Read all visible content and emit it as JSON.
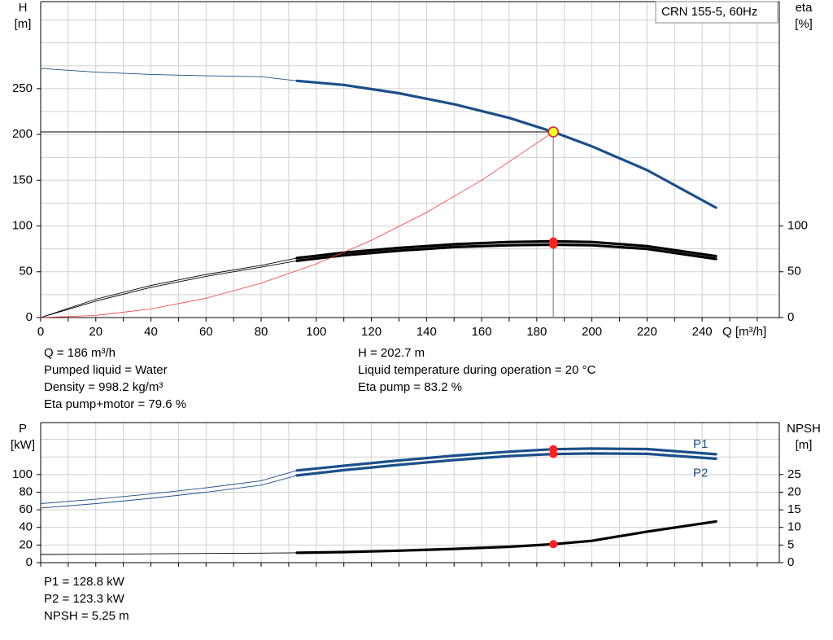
{
  "chart_data": [
    {
      "type": "line",
      "title": "CRN 155-5, 60Hz",
      "xlabel": "Q [m³/h]",
      "ylabel": "H",
      "yunit": "[m]",
      "y2label": "eta",
      "y2unit": "[%]",
      "xlim": [
        0,
        268
      ],
      "xticks": [
        0,
        20,
        40,
        60,
        80,
        100,
        120,
        140,
        160,
        180,
        200,
        220,
        240
      ],
      "xgrid": [
        0,
        10,
        20,
        30,
        40,
        50,
        60,
        70,
        80,
        90,
        100,
        110,
        120,
        130,
        140,
        150,
        160,
        170,
        180,
        190,
        200,
        210,
        220,
        230,
        240,
        250,
        260
      ],
      "ylim": [
        0,
        345
      ],
      "yticks": [
        0,
        50,
        100,
        150,
        200,
        250
      ],
      "ygrid": [
        0,
        25,
        50,
        75,
        100,
        125,
        150,
        175,
        200,
        225,
        250,
        275,
        300,
        325
      ],
      "y2lim": [
        0,
        345
      ],
      "y2ticks": [
        0,
        50,
        100
      ],
      "operating_range": [
        93,
        245
      ],
      "duty_point": {
        "x": 186,
        "y": 202.7
      },
      "series": [
        {
          "color": "#1b4f8a",
          "x": [
            0,
            20,
            40,
            60,
            80,
            93,
            110,
            130,
            150,
            170,
            186,
            200,
            220,
            245
          ],
          "values": [
            272,
            268,
            265.5,
            264,
            263,
            258.5,
            254,
            245,
            233,
            218,
            202.7,
            187,
            161,
            120
          ]
        },
        {
          "color": "#000000",
          "axis": "y2",
          "marker": true,
          "x": [
            0,
            20,
            40,
            60,
            80,
            93,
            110,
            130,
            150,
            170,
            186,
            200,
            220,
            245
          ],
          "values": [
            0,
            20,
            35,
            47,
            57,
            65,
            71,
            76,
            80,
            82.5,
            83.2,
            82.5,
            78,
            67
          ]
        },
        {
          "color": "#000000",
          "axis": "y2",
          "marker": true,
          "x": [
            0,
            20,
            40,
            60,
            80,
            93,
            110,
            130,
            150,
            170,
            186,
            200,
            220,
            245
          ],
          "values": [
            0,
            18,
            33,
            45,
            55,
            62,
            68,
            73,
            77,
            79,
            79.6,
            79,
            75,
            64
          ]
        },
        {
          "color": "#ff3b3b",
          "thin": true,
          "x": [
            0,
            20,
            40,
            60,
            80,
            100,
            120,
            140,
            160,
            186
          ],
          "values": [
            0,
            2.3,
            9.4,
            21.1,
            37.5,
            58.6,
            84.4,
            114.8,
            150,
            202.7
          ]
        }
      ]
    },
    {
      "type": "line",
      "ylabel": "P",
      "yunit": "[kW]",
      "y2label": "NPSH",
      "y2unit": "[m]",
      "xlim": [
        0,
        268
      ],
      "xgrid": [
        0,
        10,
        20,
        30,
        40,
        50,
        60,
        70,
        80,
        90,
        100,
        110,
        120,
        130,
        140,
        150,
        160,
        170,
        180,
        190,
        200,
        210,
        220,
        230,
        240,
        250,
        260
      ],
      "ylim": [
        0,
        159
      ],
      "yticks": [
        0,
        20,
        40,
        60,
        80,
        100
      ],
      "ygrid": [
        0,
        20,
        40,
        60,
        80,
        100,
        120,
        140
      ],
      "y2lim": [
        0,
        39.75
      ],
      "y2ticks": [
        0,
        5,
        10,
        15,
        20,
        25
      ],
      "operating_range": [
        93,
        245
      ],
      "duty_x": 186,
      "series": [
        {
          "name": "P1",
          "color": "#1b4f8a",
          "marker": true,
          "x": [
            0,
            20,
            40,
            60,
            80,
            93,
            110,
            130,
            150,
            170,
            186,
            200,
            220,
            245
          ],
          "values": [
            67,
            72,
            78,
            85,
            93,
            104.6,
            110,
            116,
            121.5,
            126,
            128.8,
            129.5,
            129,
            123
          ]
        },
        {
          "name": "P2",
          "color": "#1b4f8a",
          "marker": true,
          "x": [
            0,
            20,
            40,
            60,
            80,
            93,
            110,
            130,
            150,
            170,
            186,
            200,
            220,
            245
          ],
          "values": [
            62,
            67,
            73,
            80,
            88,
            99,
            105,
            111,
            116.5,
            121,
            123.3,
            124,
            123.5,
            118
          ]
        },
        {
          "color": "#000000",
          "axis": "y2",
          "marker": true,
          "x": [
            0,
            20,
            40,
            60,
            80,
            93,
            110,
            130,
            150,
            170,
            186,
            200,
            220,
            245
          ],
          "values": [
            2.3,
            2.4,
            2.5,
            2.6,
            2.7,
            2.8,
            3.0,
            3.4,
            3.9,
            4.5,
            5.25,
            6.2,
            8.8,
            11.7
          ]
        }
      ]
    }
  ],
  "operating_info": {
    "left": [
      "Q = 186 m³/h",
      "Pumped liquid = Water",
      "Density = 998.2 kg/m³",
      "Eta pump+motor = 79.6 %"
    ],
    "right": [
      "H = 202.7 m",
      "Liquid temperature during operation = 20 °C",
      "Eta pump = 83.2 %"
    ],
    "power": [
      "P1 = 128.8 kW",
      "P2 = 123.3 kW",
      "NPSH = 5.25 m"
    ]
  }
}
